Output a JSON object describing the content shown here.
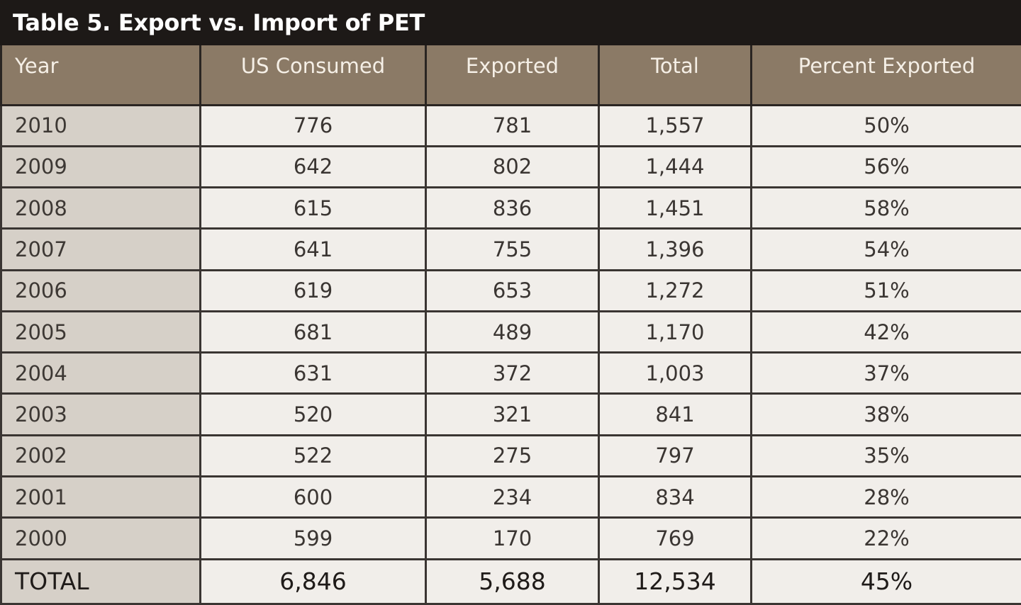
{
  "title": "Table 5. Export vs. Import of PET",
  "chart_data": {
    "type": "table",
    "title": "Table 5. Export vs. Import of PET",
    "columns": [
      "Year",
      "US Consumed",
      "Exported",
      "Total",
      "Percent Exported"
    ],
    "rows": [
      [
        "2010",
        "776",
        "781",
        "1,557",
        "50%"
      ],
      [
        "2009",
        "642",
        "802",
        "1,444",
        "56%"
      ],
      [
        "2008",
        "615",
        "836",
        "1,451",
        "58%"
      ],
      [
        "2007",
        "641",
        "755",
        "1,396",
        "54%"
      ],
      [
        "2006",
        "619",
        "653",
        "1,272",
        "51%"
      ],
      [
        "2005",
        "681",
        "489",
        "1,170",
        "42%"
      ],
      [
        "2004",
        "631",
        "372",
        "1,003",
        "37%"
      ],
      [
        "2003",
        "520",
        "321",
        "841",
        "38%"
      ],
      [
        "2002",
        "522",
        "275",
        "797",
        "35%"
      ],
      [
        "2001",
        "600",
        "234",
        "834",
        "28%"
      ],
      [
        "2000",
        "599",
        "170",
        "769",
        "22%"
      ]
    ],
    "total": [
      "TOTAL",
      "6,846",
      "5,688",
      "12,534",
      "45%"
    ]
  },
  "colors": {
    "title_bar": "#1d1917",
    "header_bg": "#8b7a66",
    "year_column_bg": "#d6d0c8",
    "cell_bg": "#f1eeea"
  }
}
